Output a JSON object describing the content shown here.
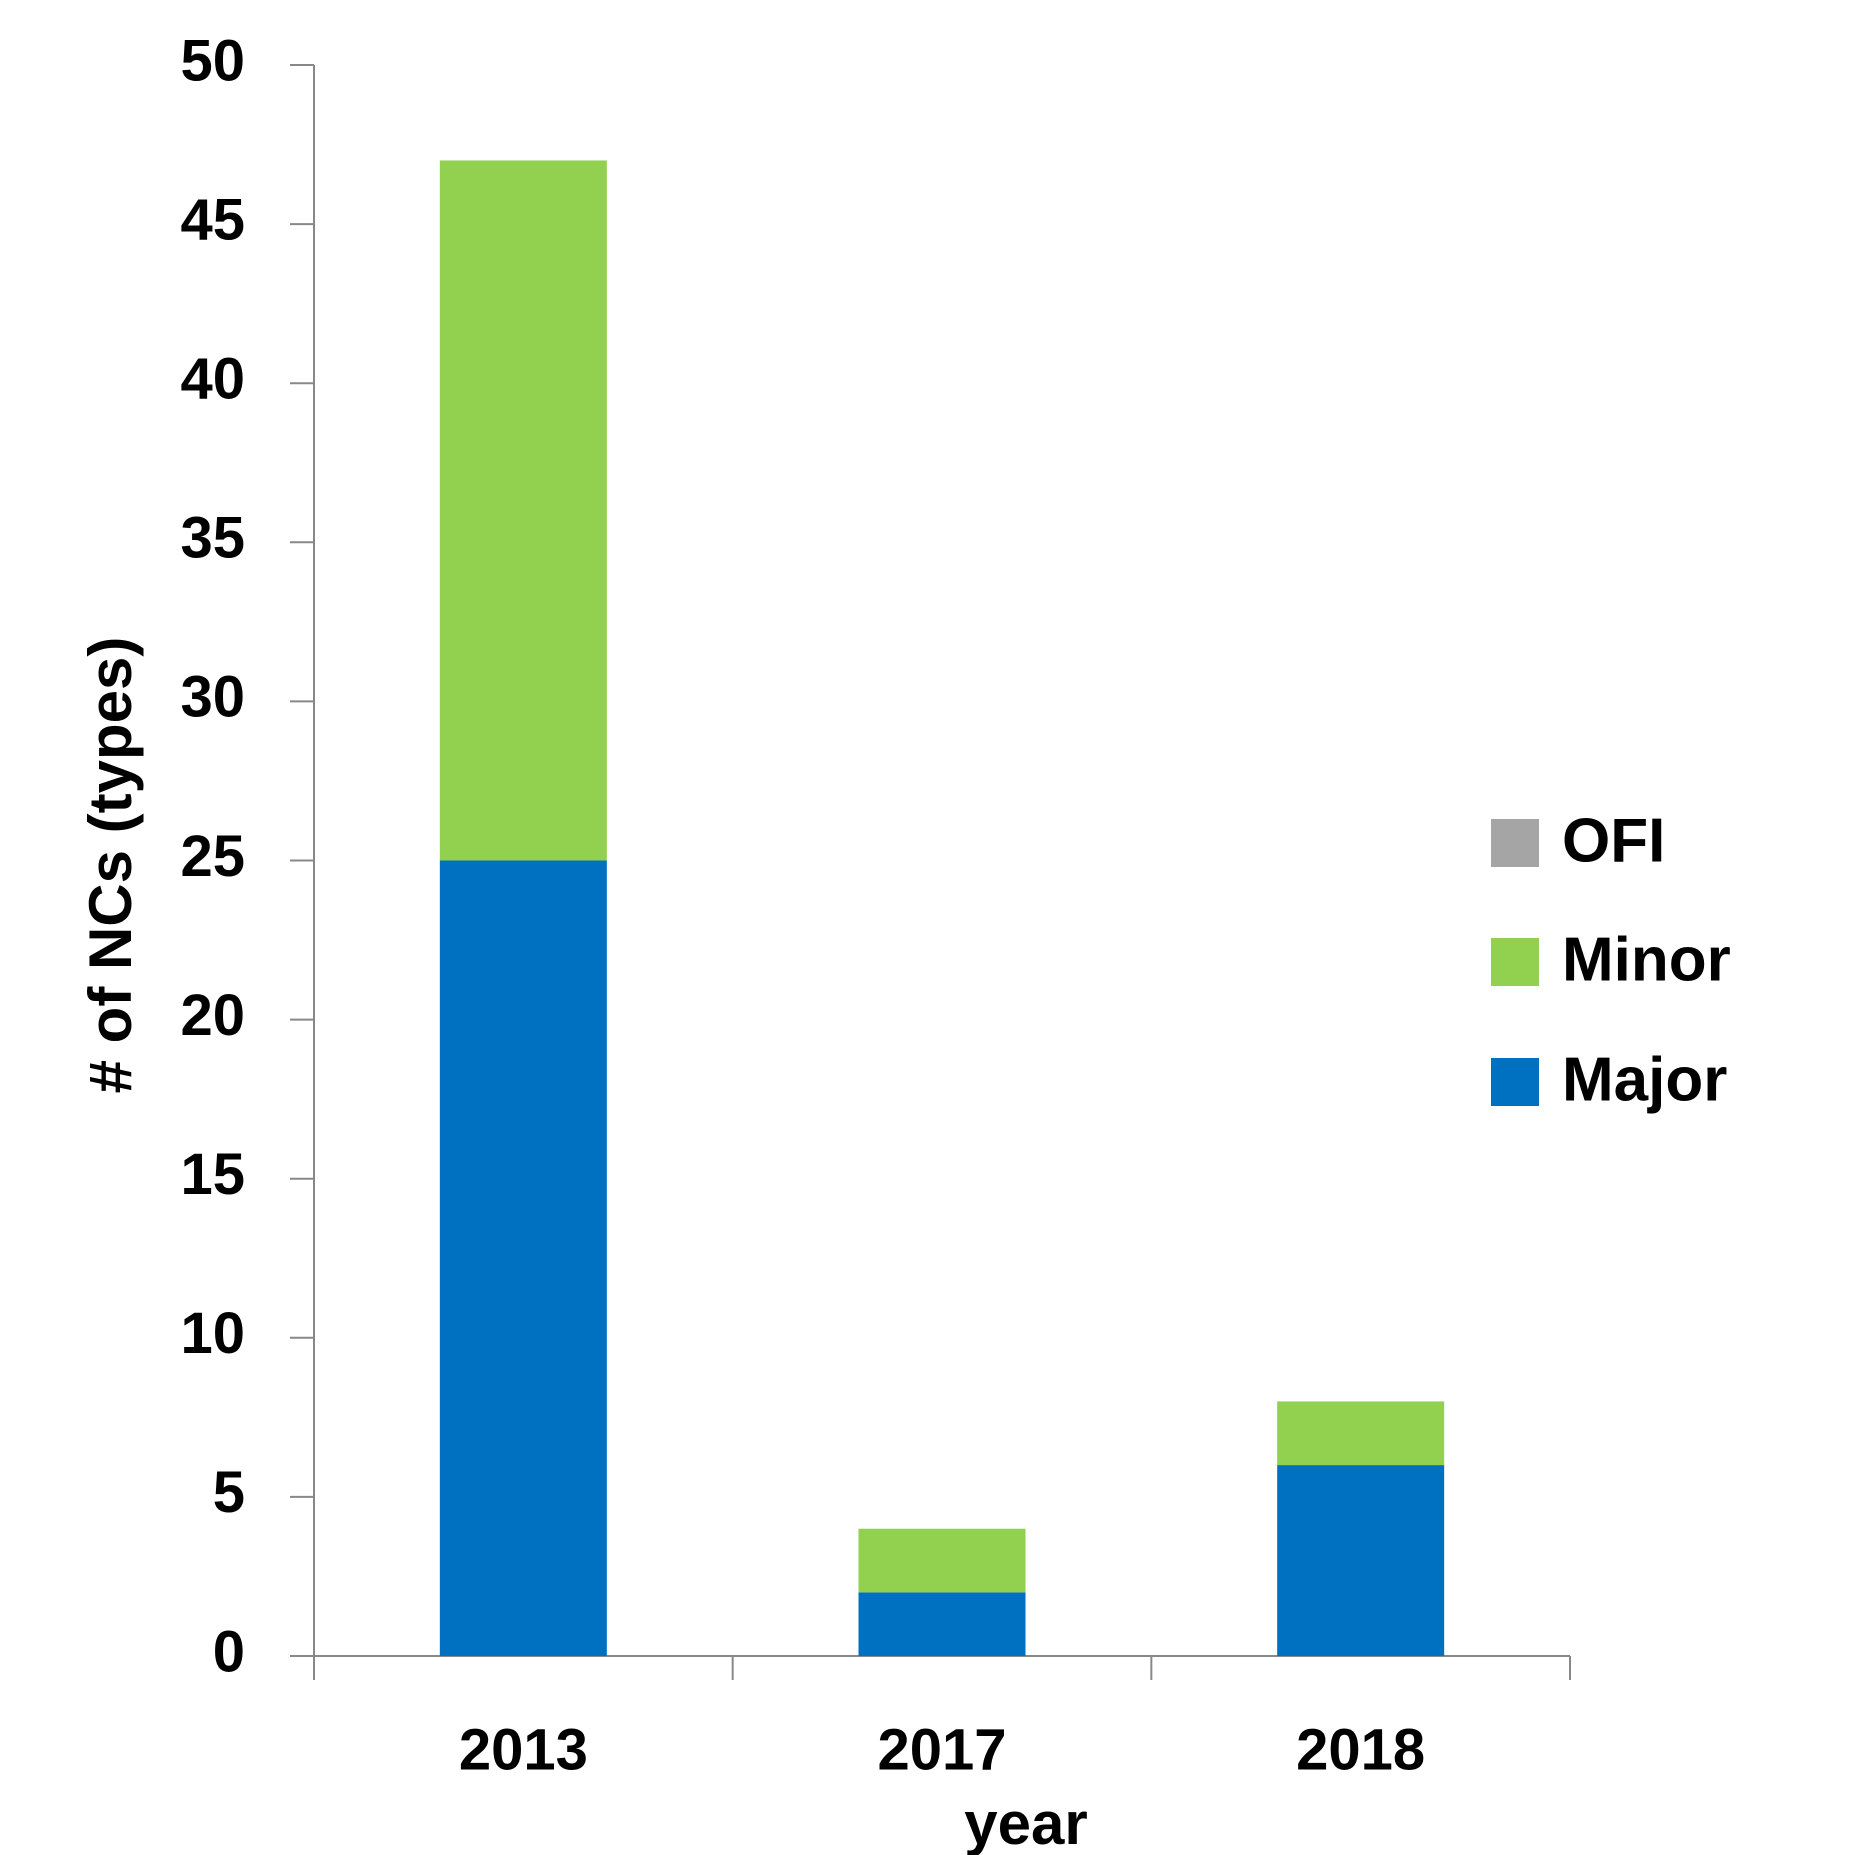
{
  "chart_data": {
    "type": "stacked_bar",
    "categories": [
      "2013",
      "2017",
      "2018"
    ],
    "series": [
      {
        "name": "Major",
        "color": "#0070C0",
        "values": [
          25,
          2,
          6
        ]
      },
      {
        "name": "Minor",
        "color": "#92D050",
        "values": [
          22,
          2,
          2
        ]
      },
      {
        "name": "OFI",
        "color": "#A5A5A5",
        "values": [
          0,
          0,
          0
        ]
      }
    ],
    "x_label": "year",
    "y_label": "# of NCs (types)",
    "ylim": [
      0,
      50
    ],
    "yticks": [
      0,
      5,
      10,
      15,
      20,
      25,
      30,
      35,
      40,
      45,
      50
    ],
    "grid": false,
    "legend": "right"
  }
}
